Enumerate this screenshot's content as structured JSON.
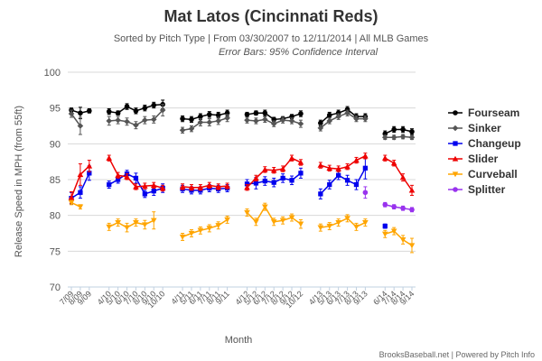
{
  "chart_data": {
    "type": "line",
    "title": "Mat Latos (Cincinnati Reds)",
    "subtitle": "Sorted by Pitch Type | From 03/30/2007 to 12/11/2014 | All MLB Games",
    "subtitle2": "Error Bars: 95% Confidence Interval",
    "xlabel": "Month",
    "ylabel": "Release Speed in MPH (from 55ft)",
    "ylim": [
      70,
      100
    ],
    "yticks": [
      70,
      75,
      80,
      85,
      90,
      95,
      100
    ],
    "grid": true,
    "legend_position": "right",
    "credit": "BrooksBaseball.net | Powered by Pitch Info",
    "x": [
      "7/09",
      "8/09",
      "9/09",
      "4/10",
      "5/10",
      "6/10",
      "7/10",
      "8/10",
      "9/10",
      "10/10",
      "4/11",
      "5/11",
      "6/11",
      "7/11",
      "8/11",
      "9/11",
      "4/12",
      "5/12",
      "6/12",
      "7/12",
      "8/12",
      "9/12",
      "10/12",
      "4/13",
      "5/13",
      "6/13",
      "7/13",
      "8/13",
      "9/13",
      "6/14",
      "7/14",
      "8/14",
      "9/14"
    ],
    "xtick_labels": [
      "7/09",
      "8/09",
      "9/09",
      "4/10",
      "5/10",
      "6/10",
      "7/10",
      "8/10",
      "9/10",
      "10/10",
      "4/11",
      "5/11",
      "6/11",
      "7/11",
      "8/11",
      "9/11",
      "4/12",
      "5/12",
      "6/12",
      "7/12",
      "8/12",
      "9/12",
      "10/12",
      "4/13",
      "5/13",
      "6/13",
      "7/13",
      "8/13",
      "9/13",
      "6/14",
      "7/14",
      "8/14",
      "9/14"
    ],
    "season_groups": [
      [
        0,
        2
      ],
      [
        3,
        9
      ],
      [
        10,
        15
      ],
      [
        16,
        22
      ],
      [
        23,
        28
      ],
      [
        29,
        32
      ]
    ],
    "series": [
      {
        "name": "Fourseam",
        "color": "#000000",
        "marker": "circle",
        "values": [
          94.7,
          94.3,
          94.6,
          94.5,
          94.3,
          95.2,
          94.6,
          95.0,
          95.4,
          95.5,
          93.5,
          93.4,
          93.8,
          94.1,
          94.0,
          94.3,
          94.1,
          94.3,
          94.3,
          93.4,
          93.5,
          93.8,
          94.2,
          92.9,
          94.0,
          94.3,
          94.8,
          93.8,
          93.8,
          91.4,
          92.0,
          92.0,
          91.7
        ],
        "err": [
          0.3,
          0.8,
          0.3,
          0.4,
          0.3,
          0.4,
          0.4,
          0.4,
          0.4,
          0.6,
          0.4,
          0.4,
          0.4,
          0.4,
          0.4,
          0.4,
          0.3,
          0.3,
          0.4,
          0.3,
          0.3,
          0.3,
          0.4,
          0.4,
          0.4,
          0.4,
          0.4,
          0.4,
          0.4,
          0.4,
          0.4,
          0.4,
          0.4
        ]
      },
      {
        "name": "Sinker",
        "color": "#555555",
        "marker": "diamond",
        "values": [
          94.2,
          92.5,
          null,
          93.2,
          93.3,
          93.1,
          92.6,
          93.3,
          93.4,
          94.7,
          91.9,
          92.1,
          93.0,
          93.0,
          93.2,
          93.6,
          93.3,
          93.2,
          93.4,
          92.8,
          93.3,
          93.2,
          92.8,
          92.2,
          93.2,
          93.8,
          94.3,
          93.5,
          93.5,
          90.9,
          90.9,
          91.0,
          90.9
        ],
        "err": [
          0.5,
          1.2,
          0,
          0.6,
          0.5,
          0.5,
          0.5,
          0.5,
          0.5,
          0.8,
          0.4,
          0.4,
          0.5,
          0.5,
          0.5,
          0.5,
          0.4,
          0.4,
          0.4,
          0.4,
          0.4,
          0.4,
          0.5,
          0.4,
          0.4,
          0.4,
          0.4,
          0.4,
          0.4,
          0.3,
          0.3,
          0.3,
          0.3
        ]
      },
      {
        "name": "Changeup",
        "color": "#0000ee",
        "marker": "square",
        "values": [
          82.4,
          83.2,
          85.9,
          84.3,
          85.0,
          85.8,
          85.2,
          83.0,
          83.4,
          83.8,
          83.7,
          83.5,
          83.5,
          83.8,
          83.7,
          83.8,
          84.4,
          84.5,
          84.8,
          84.6,
          85.2,
          84.9,
          85.9,
          83.0,
          84.3,
          85.6,
          84.9,
          84.3,
          86.6,
          78.5,
          null,
          null,
          null
        ],
        "err": [
          0.8,
          0.8,
          1.0,
          0.5,
          0.5,
          0.5,
          0.7,
          0.5,
          0.6,
          0.6,
          0.5,
          0.5,
          0.5,
          0.5,
          0.5,
          0.5,
          0.6,
          0.8,
          0.6,
          0.6,
          0.6,
          0.6,
          0.7,
          0.7,
          0.6,
          0.6,
          0.7,
          0.7,
          1.5,
          0.3,
          0,
          0,
          0
        ]
      },
      {
        "name": "Slider",
        "color": "#ee0000",
        "marker": "triangle",
        "values": [
          82.5,
          85.7,
          86.9,
          88.0,
          85.6,
          85.4,
          84.0,
          84.1,
          84.2,
          83.8,
          84.0,
          83.9,
          83.9,
          84.2,
          84.0,
          84.1,
          83.9,
          85.2,
          86.4,
          86.3,
          86.5,
          88.0,
          87.4,
          87.0,
          86.6,
          86.5,
          86.8,
          87.7,
          88.3,
          88.0,
          87.3,
          85.3,
          83.5
        ],
        "err": [
          0.8,
          1.5,
          0.8,
          0.4,
          0.4,
          0.4,
          0.4,
          0.4,
          0.4,
          0.4,
          0.4,
          0.4,
          0.4,
          0.4,
          0.4,
          0.4,
          0.4,
          0.4,
          0.4,
          0.4,
          0.4,
          0.4,
          0.4,
          0.4,
          0.4,
          0.4,
          0.4,
          0.4,
          0.4,
          0.4,
          0.4,
          0.5,
          0.7
        ]
      },
      {
        "name": "Curveball",
        "color": "#ffa500",
        "marker": "triangle-down",
        "values": [
          81.8,
          81.2,
          null,
          78.4,
          79.0,
          78.3,
          79.0,
          78.7,
          79.3,
          null,
          77.0,
          77.5,
          77.9,
          78.2,
          78.6,
          79.4,
          80.4,
          79.1,
          81.2,
          79.1,
          79.3,
          79.7,
          78.8,
          78.3,
          78.5,
          79.0,
          79.6,
          78.4,
          79.0,
          77.4,
          77.8,
          76.6,
          75.8
        ],
        "err": [
          0.3,
          0.3,
          0,
          0.5,
          0.5,
          0.6,
          0.5,
          0.6,
          1.2,
          0,
          0.5,
          0.5,
          0.5,
          0.5,
          0.5,
          0.5,
          0.5,
          0.5,
          0.5,
          0.5,
          0.5,
          0.5,
          0.6,
          0.5,
          0.5,
          0.5,
          0.5,
          0.5,
          0.5,
          0.5,
          0.5,
          0.6,
          1.0
        ]
      },
      {
        "name": "Splitter",
        "color": "#9933ee",
        "marker": "circle",
        "values": [
          null,
          null,
          null,
          null,
          null,
          null,
          null,
          null,
          null,
          null,
          null,
          null,
          null,
          null,
          null,
          null,
          null,
          null,
          null,
          null,
          null,
          null,
          null,
          null,
          null,
          null,
          null,
          null,
          83.2,
          81.5,
          81.2,
          81.0,
          80.8
        ],
        "err": [
          0,
          0,
          0,
          0,
          0,
          0,
          0,
          0,
          0,
          0,
          0,
          0,
          0,
          0,
          0,
          0,
          0,
          0,
          0,
          0,
          0,
          0,
          0,
          0,
          0,
          0,
          0,
          0,
          0.8,
          0.3,
          0.3,
          0.3,
          0.3
        ]
      }
    ]
  }
}
